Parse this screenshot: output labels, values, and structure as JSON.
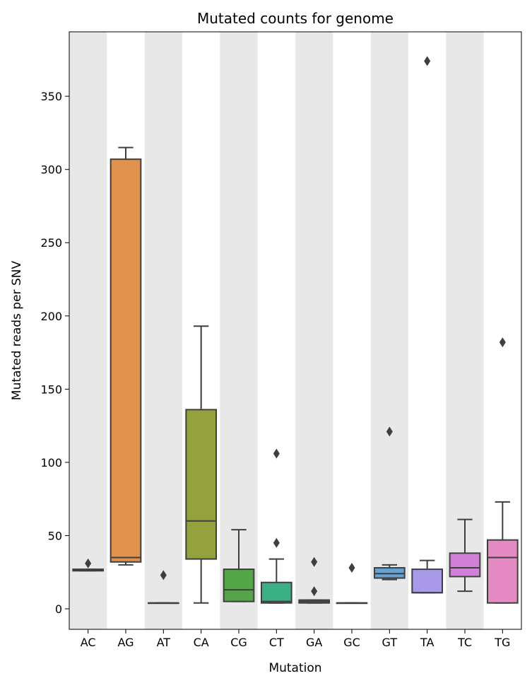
{
  "chart_data": {
    "type": "box",
    "title": "Mutated counts for genome",
    "xlabel": "Mutation",
    "ylabel": "Mutated reads per SNV",
    "ylim": [
      -14,
      394
    ],
    "yticks": [
      0,
      50,
      100,
      150,
      200,
      250,
      300,
      350
    ],
    "categories": [
      "AC",
      "AG",
      "AT",
      "CA",
      "CG",
      "CT",
      "GA",
      "GC",
      "GT",
      "TA",
      "TC",
      "TG"
    ],
    "shaded_columns": [
      "AC",
      "AT",
      "CG",
      "GA",
      "GT",
      "TC"
    ],
    "colors": {
      "AC": "#3274a1",
      "AG": "#e1914e",
      "AT": "#3a923a",
      "CA": "#95a13f",
      "CG": "#54a547",
      "CT": "#3bb084",
      "GA": "#3d9bd1",
      "GC": "#2f7fb8",
      "GT": "#65a1d4",
      "TA": "#a89ae9",
      "TC": "#d081d5",
      "TG": "#e68ac4",
      "shade": "#e8e8e8",
      "line": "#3f3f3f"
    },
    "boxes": [
      {
        "cat": "AC",
        "whislo": 26,
        "q1": 26,
        "med": 26,
        "q3": 27,
        "whishi": 27,
        "fliers": [
          31
        ]
      },
      {
        "cat": "AG",
        "whislo": 30,
        "q1": 32,
        "med": 35,
        "q3": 307,
        "whishi": 315,
        "fliers": []
      },
      {
        "cat": "AT",
        "whislo": 4,
        "q1": 4,
        "med": 4,
        "q3": 4,
        "whishi": 4,
        "fliers": [
          23
        ]
      },
      {
        "cat": "CA",
        "whislo": 4,
        "q1": 34,
        "med": 60,
        "q3": 136,
        "whishi": 193,
        "fliers": []
      },
      {
        "cat": "CG",
        "whislo": 5,
        "q1": 5,
        "med": 13,
        "q3": 27,
        "whishi": 54,
        "fliers": []
      },
      {
        "cat": "CT",
        "whislo": 4,
        "q1": 4,
        "med": 5,
        "q3": 18,
        "whishi": 34,
        "fliers": [
          45,
          106
        ]
      },
      {
        "cat": "GA",
        "whislo": 4,
        "q1": 4,
        "med": 5,
        "q3": 6,
        "whishi": 6,
        "fliers": [
          12,
          32
        ]
      },
      {
        "cat": "GC",
        "whislo": 4,
        "q1": 4,
        "med": 4,
        "q3": 4,
        "whishi": 4,
        "fliers": [
          28
        ]
      },
      {
        "cat": "GT",
        "whislo": 20,
        "q1": 21,
        "med": 24,
        "q3": 28,
        "whishi": 30,
        "fliers": [
          121
        ]
      },
      {
        "cat": "TA",
        "whislo": 11,
        "q1": 11,
        "med": 11,
        "q3": 27,
        "whishi": 33,
        "fliers": [
          374
        ]
      },
      {
        "cat": "TC",
        "whislo": 12,
        "q1": 22,
        "med": 28,
        "q3": 38,
        "whishi": 61,
        "fliers": []
      },
      {
        "cat": "TG",
        "whislo": 4,
        "q1": 4,
        "med": 35,
        "q3": 47,
        "whishi": 73,
        "fliers": [
          182
        ]
      }
    ]
  }
}
